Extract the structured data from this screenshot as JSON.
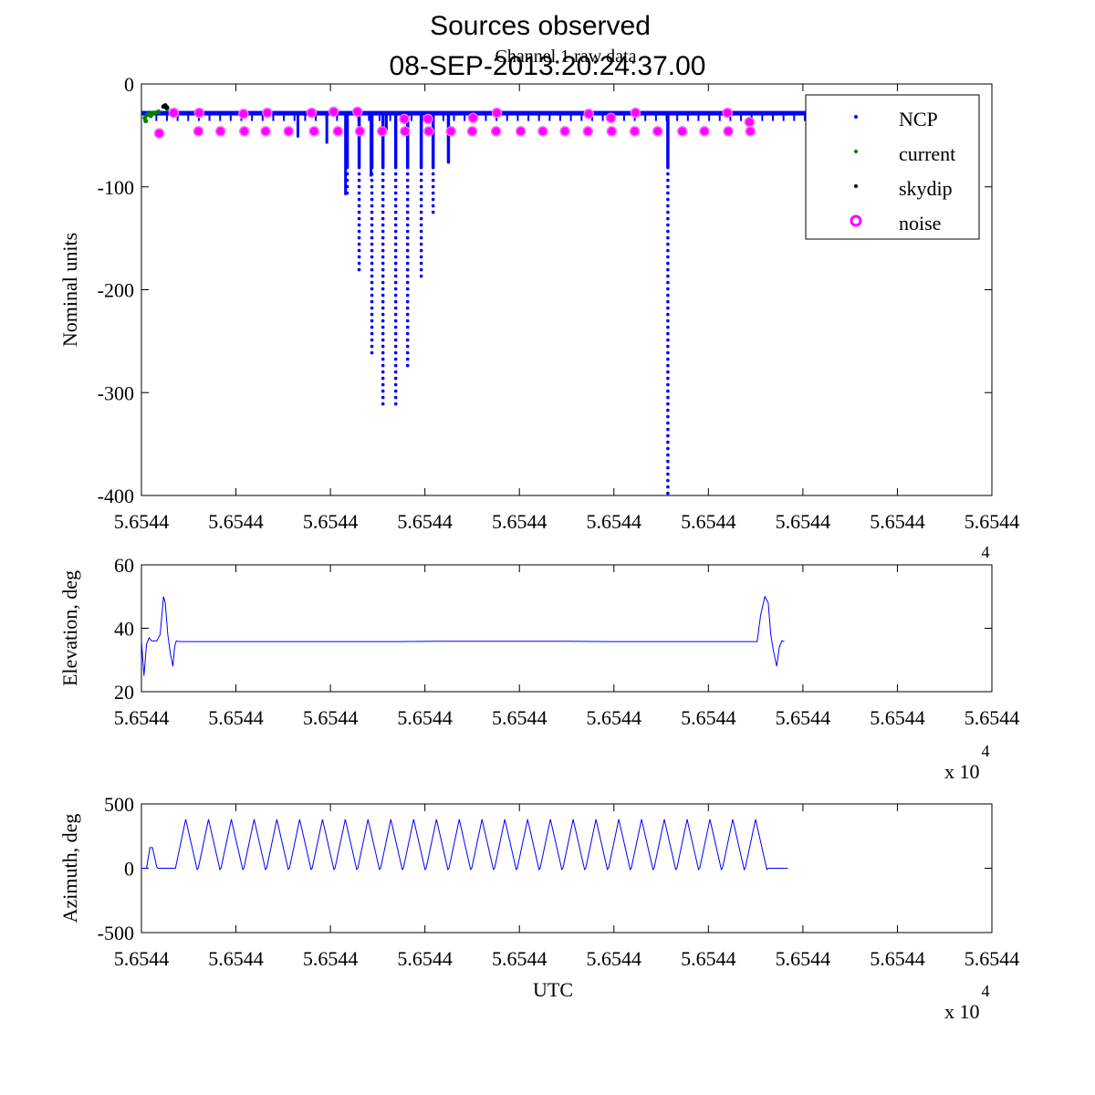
{
  "figure": {
    "title_line1": "Sources observed",
    "title_line2": "08-SEP-2013:20:24:37.00"
  },
  "chart_data": [
    {
      "type": "scatter",
      "subtitle": "Channel 1 raw data",
      "xlabel": "",
      "ylabel": "Nominal units",
      "ylim": [
        -400,
        0
      ],
      "xlim": [
        0,
        1
      ],
      "x_tick_labels": [
        "5.6544",
        "5.6544",
        "5.6544",
        "5.6544",
        "5.6544",
        "5.6544",
        "5.6544",
        "5.6544",
        "5.6544",
        "5.6544"
      ],
      "y_ticks": [
        0,
        -100,
        -200,
        -300,
        -400
      ],
      "exponent_label": "4",
      "grid": false,
      "legend_position": "top-right",
      "legend": [
        {
          "name": "NCP",
          "color": "#0000ff",
          "marker": "dot"
        },
        {
          "name": "current",
          "color": "#008000",
          "marker": "dot"
        },
        {
          "name": "skydip",
          "color": "#000000",
          "marker": "dot"
        },
        {
          "name": "noise",
          "color": "#ff00ff",
          "marker": "circle"
        }
      ],
      "baseline_ncp": -28,
      "baseline_xrange": [
        0.0,
        0.88
      ],
      "dips": [
        {
          "x": 0.074,
          "min": -30
        },
        {
          "x": 0.184,
          "min": -52
        },
        {
          "x": 0.218,
          "min": -58
        },
        {
          "x": 0.24,
          "min": -108
        },
        {
          "x": 0.247,
          "min": -30
        },
        {
          "x": 0.266,
          "min": -30
        },
        {
          "x": 0.27,
          "min": -90
        },
        {
          "x": 0.288,
          "min": -45
        },
        {
          "x": 0.295,
          "min": -30
        },
        {
          "x": 0.323,
          "min": -30
        },
        {
          "x": 0.366,
          "min": -30
        },
        {
          "x": 0.409,
          "min": -30
        },
        {
          "x": 0.448,
          "min": -30
        },
        {
          "x": 0.5,
          "min": -30
        },
        {
          "x": 0.524,
          "min": -30
        },
        {
          "x": 0.573,
          "min": -30
        },
        {
          "x": 0.62,
          "min": -30
        }
      ],
      "ncp_spikes": [
        {
          "x": 0.242,
          "min": -108
        },
        {
          "x": 0.256,
          "min": -185
        },
        {
          "x": 0.271,
          "min": -262
        },
        {
          "x": 0.284,
          "min": -312
        },
        {
          "x": 0.299,
          "min": -316
        },
        {
          "x": 0.313,
          "min": -275
        },
        {
          "x": 0.329,
          "min": -190
        },
        {
          "x": 0.343,
          "min": -128
        },
        {
          "x": 0.361,
          "min": -76
        },
        {
          "x": 0.619,
          "min": -400
        }
      ],
      "noise_points": [
        {
          "x": 0.021,
          "y": -48
        },
        {
          "x": 0.038,
          "y": -28
        },
        {
          "x": 0.067,
          "y": -46
        },
        {
          "x": 0.068,
          "y": -28
        },
        {
          "x": 0.093,
          "y": -46
        },
        {
          "x": 0.121,
          "y": -46
        },
        {
          "x": 0.12,
          "y": -29
        },
        {
          "x": 0.146,
          "y": -46
        },
        {
          "x": 0.148,
          "y": -28
        },
        {
          "x": 0.173,
          "y": -46
        },
        {
          "x": 0.203,
          "y": -46
        },
        {
          "x": 0.2,
          "y": -28
        },
        {
          "x": 0.231,
          "y": -46
        },
        {
          "x": 0.226,
          "y": -27
        },
        {
          "x": 0.257,
          "y": -46
        },
        {
          "x": 0.254,
          "y": -27
        },
        {
          "x": 0.283,
          "y": -46
        },
        {
          "x": 0.31,
          "y": -46
        },
        {
          "x": 0.309,
          "y": -34
        },
        {
          "x": 0.338,
          "y": -46
        },
        {
          "x": 0.337,
          "y": -34
        },
        {
          "x": 0.364,
          "y": -46
        },
        {
          "x": 0.389,
          "y": -46
        },
        {
          "x": 0.39,
          "y": -33
        },
        {
          "x": 0.417,
          "y": -46
        },
        {
          "x": 0.418,
          "y": -28
        },
        {
          "x": 0.446,
          "y": -46
        },
        {
          "x": 0.472,
          "y": -46
        },
        {
          "x": 0.498,
          "y": -46
        },
        {
          "x": 0.525,
          "y": -46
        },
        {
          "x": 0.526,
          "y": -29
        },
        {
          "x": 0.553,
          "y": -46
        },
        {
          "x": 0.552,
          "y": -33
        },
        {
          "x": 0.58,
          "y": -46
        },
        {
          "x": 0.581,
          "y": -28
        },
        {
          "x": 0.607,
          "y": -46
        },
        {
          "x": 0.636,
          "y": -46
        },
        {
          "x": 0.662,
          "y": -46
        },
        {
          "x": 0.69,
          "y": -46
        },
        {
          "x": 0.689,
          "y": -28
        },
        {
          "x": 0.716,
          "y": -46
        },
        {
          "x": 0.715,
          "y": -37
        }
      ],
      "current_points": [
        {
          "x": 0.004,
          "y": -33
        },
        {
          "x": 0.005,
          "y": -36
        },
        {
          "x": 0.007,
          "y": -30
        },
        {
          "x": 0.009,
          "y": -28
        },
        {
          "x": 0.011,
          "y": -31
        },
        {
          "x": 0.013,
          "y": -29
        },
        {
          "x": 0.016,
          "y": -28
        },
        {
          "x": 0.02,
          "y": -27
        },
        {
          "x": 0.027,
          "y": -22
        },
        {
          "x": 0.03,
          "y": -24
        }
      ],
      "skydip_points": [
        {
          "x": 0.026,
          "y": -22
        },
        {
          "x": 0.028,
          "y": -21
        },
        {
          "x": 0.03,
          "y": -23
        }
      ]
    },
    {
      "type": "line",
      "xlabel": "",
      "ylabel": "Elevation, deg",
      "ylim": [
        20,
        60
      ],
      "xlim": [
        0,
        1
      ],
      "y_ticks": [
        60,
        40,
        20
      ],
      "x_tick_labels": [
        "5.6544",
        "5.6544",
        "5.6544",
        "5.6544",
        "5.6544",
        "5.6544",
        "5.6544",
        "5.6544",
        "5.6544",
        "5.6544"
      ],
      "exponent_label": "x 10",
      "exponent_power": "4",
      "color": "#0000ff",
      "x": [
        0.0,
        0.003,
        0.006,
        0.009,
        0.012,
        0.018,
        0.022,
        0.026,
        0.028,
        0.031,
        0.034,
        0.037,
        0.039,
        0.041,
        0.045,
        0.3,
        0.35,
        0.5,
        0.55,
        0.72,
        0.724,
        0.728,
        0.733,
        0.737,
        0.74,
        0.743,
        0.747,
        0.75,
        0.753,
        0.756
      ],
      "y": [
        36,
        25,
        35,
        37,
        36,
        36,
        38,
        50,
        48,
        38,
        32,
        28,
        34,
        36,
        35.8,
        35.8,
        35.9,
        35.9,
        35.8,
        35.8,
        35.8,
        44,
        50,
        48,
        38,
        33,
        28,
        34,
        36,
        35.8
      ]
    },
    {
      "type": "line",
      "xlabel": "UTC",
      "ylabel": "Azimuth, deg",
      "ylim": [
        -500,
        500
      ],
      "xlim": [
        0,
        1
      ],
      "y_ticks": [
        500,
        0,
        -500
      ],
      "x_tick_labels": [
        "5.6544",
        "5.6544",
        "5.6544",
        "5.6544",
        "5.6544",
        "5.6544",
        "5.6544",
        "5.6544",
        "5.6544",
        "5.6544"
      ],
      "exponent_label": "x 10",
      "exponent_power": "4",
      "color": "#0000ff",
      "lead_x": [
        0.0,
        0.006,
        0.01,
        0.013,
        0.018,
        0.02,
        0.04
      ],
      "lead_y": [
        0,
        0,
        160,
        160,
        10,
        0,
        0
      ],
      "sweep_start": 0.04,
      "sweep_period": 0.0268,
      "sweep_count": 26,
      "sweep_max": 380,
      "sweep_min": -10,
      "tail_end": 0.76
    }
  ]
}
